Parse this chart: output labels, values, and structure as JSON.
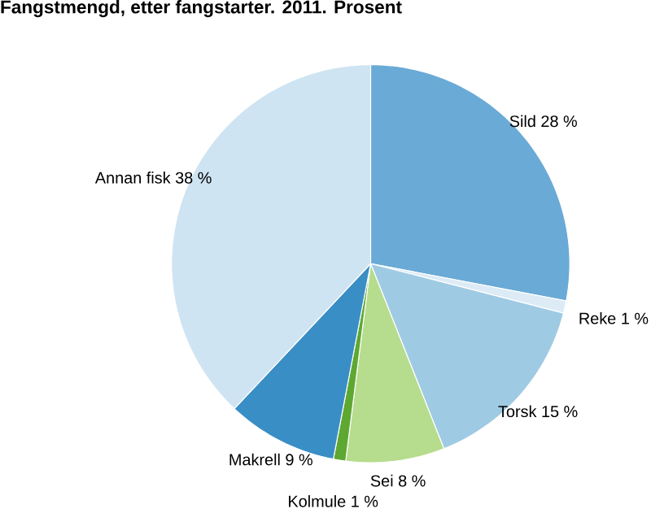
{
  "chart_data": {
    "type": "pie",
    "title": "Fangstmengd, etter fangstarter. 2011. Prosent",
    "categories": [
      "Sild",
      "Reke",
      "Torsk",
      "Sei",
      "Kolmule",
      "Makrell",
      "Annan fisk"
    ],
    "values": [
      28,
      1,
      15,
      8,
      1,
      9,
      38
    ],
    "value_labels": [
      "28 %",
      "1 %",
      "15 %",
      "8 %",
      "1 %",
      "9 %",
      "38 %"
    ],
    "colors": [
      "#6aaad6",
      "#dcebf6",
      "#9fcae3",
      "#b6dc8e",
      "#5ea832",
      "#3a8ec6",
      "#cfe4f2"
    ]
  }
}
